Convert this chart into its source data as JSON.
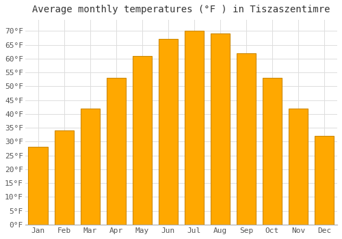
{
  "title": "Average monthly temperatures (°F ) in Tiszaszentimre",
  "months": [
    "Jan",
    "Feb",
    "Mar",
    "Apr",
    "May",
    "Jun",
    "Jul",
    "Aug",
    "Sep",
    "Oct",
    "Nov",
    "Dec"
  ],
  "values": [
    28,
    34,
    42,
    53,
    61,
    67,
    70,
    69,
    62,
    53,
    42,
    32
  ],
  "bar_color": "#FFA800",
  "bar_edge_color": "#CC8800",
  "ylim": [
    0,
    74
  ],
  "yticks": [
    0,
    5,
    10,
    15,
    20,
    25,
    30,
    35,
    40,
    45,
    50,
    55,
    60,
    65,
    70
  ],
  "ytick_labels": [
    "0°F",
    "5°F",
    "10°F",
    "15°F",
    "20°F",
    "25°F",
    "30°F",
    "35°F",
    "40°F",
    "45°F",
    "50°F",
    "55°F",
    "60°F",
    "65°F",
    "70°F"
  ],
  "background_color": "#FFFFFF",
  "plot_bg_color": "#FFFFFF",
  "grid_color": "#DDDDDD",
  "title_fontsize": 10,
  "tick_fontsize": 8,
  "font_family": "monospace",
  "bar_width": 0.75
}
